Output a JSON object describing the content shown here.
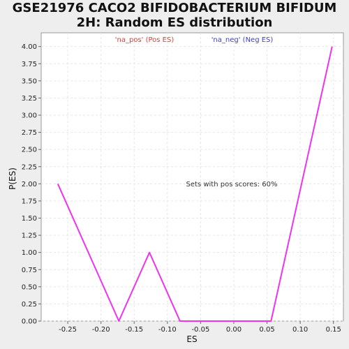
{
  "chart_data": {
    "type": "line",
    "title": "GSE21976 CACO2 BIFIDOBACTERIUM BIFIDUM 2H: Random ES distribution",
    "xlabel": "ES",
    "ylabel": "P(ES)",
    "xlim": [
      -0.29,
      0.165
    ],
    "ylim": [
      0,
      4.2
    ],
    "x_ticks": [
      -0.25,
      -0.2,
      -0.15,
      -0.1,
      -0.05,
      0.0,
      0.05,
      0.1,
      0.15
    ],
    "x_tick_labels": [
      "-0.25",
      "-0.20",
      "-0.15",
      "-0.10",
      "-0.05",
      "0.00",
      "0.05",
      "0.10",
      "0.15"
    ],
    "y_ticks": [
      0,
      0.25,
      0.5,
      0.75,
      1,
      1.25,
      1.5,
      1.75,
      2,
      2.25,
      2.5,
      2.75,
      3,
      3.25,
      3.5,
      3.75,
      4
    ],
    "y_tick_labels": [
      "0.00",
      "0.25",
      "0.50",
      "0.75",
      "1.00",
      "1.25",
      "1.50",
      "1.75",
      "2.00",
      "2.25",
      "2.50",
      "2.75",
      "3.00",
      "3.25",
      "3.50",
      "3.75",
      "4.00"
    ],
    "grid": true,
    "legend": [
      {
        "label": "'na_pos' (Pos ES)",
        "color": "#e03c3c"
      },
      {
        "label": "'na_neg' (Neg ES)",
        "color": "#3c3ccc"
      }
    ],
    "legend_placement": "top",
    "annotation": "Sets with pos scores: 60%",
    "series": [
      {
        "color": "#ee33ee",
        "x": [
          -0.265,
          -0.173,
          -0.127,
          -0.081,
          0.056,
          0.148
        ],
        "y": [
          2.0,
          0.0,
          1.0,
          0.0,
          0.0,
          4.0
        ]
      }
    ]
  }
}
